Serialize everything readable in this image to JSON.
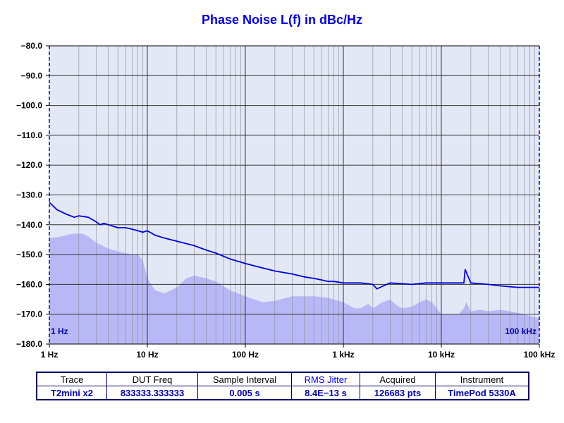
{
  "colors": {
    "trace": "#0000dd",
    "title": "#0000dd",
    "fill": "#b8b8f6",
    "plot_bg": "#e2e8f6",
    "grid": "#555555",
    "table_header_accent": "#0000ff",
    "table_value": "#0000aa"
  },
  "table": {
    "headers": [
      "Trace",
      "DUT Freq",
      "Sample Interval",
      "RMS Jitter",
      "Acquired",
      "Instrument"
    ],
    "values": [
      "T2mini x2",
      "833333.333333",
      "0.005 s",
      "8.4E−13 s",
      "126683 pts",
      "TimePod 5330A"
    ]
  },
  "chart_data": {
    "type": "line",
    "title": "Phase Noise L(f) in dBc/Hz",
    "x_scale": "log",
    "xlim": [
      1,
      100000
    ],
    "ylim": [
      -180,
      -80
    ],
    "x_ticks": [
      1,
      10,
      100,
      1000,
      10000,
      100000
    ],
    "x_tick_labels": [
      "1 Hz",
      "10 Hz",
      "100 Hz",
      "1 kHz",
      "10 kHz",
      "100 kHz"
    ],
    "y_ticks": [
      -80,
      -90,
      -100,
      -110,
      -120,
      -130,
      -140,
      -150,
      -160,
      -170,
      -180
    ],
    "y_tick_labels": [
      "−80.0",
      "−90.0",
      "−100.0",
      "−110.0",
      "−120.0",
      "−130.0",
      "−140.0",
      "−150.0",
      "−160.0",
      "−170.0",
      "−180.0"
    ],
    "grid": true,
    "annotations": {
      "left": "1 Hz",
      "right": "100 kHz"
    },
    "series": [
      {
        "x": [
          1,
          1.2,
          1.5,
          1.8,
          2,
          2.5,
          3,
          3.3,
          3.6,
          4,
          5,
          6,
          7,
          8,
          9,
          10,
          12,
          15,
          20,
          30,
          40,
          50,
          70,
          100,
          150,
          200,
          300,
          400,
          500,
          600,
          700,
          800,
          1000,
          1500,
          2000,
          2200,
          3000,
          5000,
          7000,
          10000,
          15000,
          17000,
          17500,
          20000,
          30000,
          40000,
          60000,
          100000
        ],
        "y": [
          -132.5,
          -135,
          -136.5,
          -137.5,
          -137,
          -137.5,
          -139,
          -140,
          -139.5,
          -140,
          -141,
          -141,
          -141.5,
          -142,
          -142.5,
          -142,
          -143.5,
          -144.5,
          -145.5,
          -147,
          -148.5,
          -149.5,
          -151.5,
          -153,
          -154.5,
          -155.5,
          -156.5,
          -157.5,
          -158,
          -158.5,
          -159,
          -159,
          -159.5,
          -159.5,
          -160,
          -161.5,
          -159.5,
          -160,
          -159.5,
          -159.5,
          -159.5,
          -159.5,
          -155,
          -159.5,
          -160,
          -160.5,
          -161,
          -161
        ]
      },
      {
        "x": [
          1,
          1.3,
          1.7,
          2.2,
          2.5,
          3,
          4,
          5,
          6,
          7,
          8,
          9,
          10,
          12,
          15,
          20,
          25,
          30,
          40,
          50,
          70,
          100,
          150,
          200,
          300,
          400,
          500,
          700,
          1000,
          1300,
          1500,
          1800,
          2000,
          2500,
          3000,
          3500,
          4000,
          5000,
          6000,
          7000,
          8000,
          9000,
          10000,
          12000,
          15000,
          17000,
          18000,
          20000,
          25000,
          30000,
          40000,
          50000,
          70000,
          100000
        ],
        "y": [
          -144.5,
          -144,
          -143,
          -143,
          -144,
          -146,
          -148,
          -149,
          -149.5,
          -150,
          -150,
          -152,
          -158,
          -162,
          -163,
          -161,
          -158,
          -157,
          -158,
          -159,
          -162,
          -164,
          -166,
          -165.5,
          -164,
          -164,
          -164,
          -164.5,
          -166,
          -168,
          -168,
          -166.5,
          -168,
          -166,
          -165,
          -167,
          -168,
          -167.5,
          -166,
          -165,
          -166,
          -168,
          -170,
          -170,
          -170,
          -168,
          -166,
          -169,
          -168.5,
          -169,
          -168.5,
          -169,
          -170,
          -171.5
        ]
      }
    ]
  }
}
